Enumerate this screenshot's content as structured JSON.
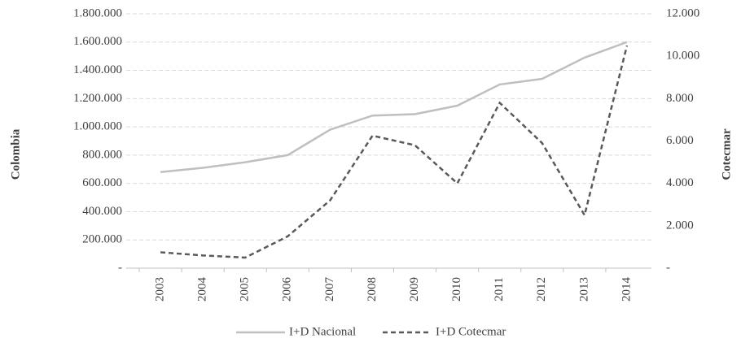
{
  "chart_data": {
    "type": "line",
    "categories": [
      "2003",
      "2004",
      "2005",
      "2006",
      "2007",
      "2008",
      "2009",
      "2010",
      "2011",
      "2012",
      "2013",
      "2014"
    ],
    "y_label": "Colombia",
    "y2_label": "Cotecmar",
    "series": [
      {
        "name": "I+D Nacional",
        "color": "#bfbfbf",
        "dash": false,
        "values": [
          680000,
          710000,
          750000,
          800000,
          980000,
          1080000,
          1090000,
          1150000,
          1300000,
          1340000,
          1490000,
          1600000
        ]
      },
      {
        "name": "I+D Cotecmar",
        "color": "#595959",
        "dash": true,
        "axis": "y2",
        "values": [
          750,
          600,
          500,
          1500,
          3200,
          6250,
          5800,
          4000,
          7800,
          5900,
          2500,
          10500
        ]
      }
    ],
    "ylim": [
      0,
      1800000
    ],
    "yticks": [
      {
        "value": 0,
        "label": "-"
      },
      {
        "value": 200000,
        "label": "200.000"
      },
      {
        "value": 400000,
        "label": "400.000"
      },
      {
        "value": 600000,
        "label": "600.000"
      },
      {
        "value": 800000,
        "label": "800.000"
      },
      {
        "value": 1000000,
        "label": "1.000.000"
      },
      {
        "value": 1200000,
        "label": "1.200.000"
      },
      {
        "value": 1400000,
        "label": "1.400.000"
      },
      {
        "value": 1600000,
        "label": "1.600.000"
      },
      {
        "value": 1800000,
        "label": "1.800.000"
      }
    ],
    "y2lim": [
      0,
      12000
    ],
    "y2ticks": [
      {
        "value": 0,
        "label": "-"
      },
      {
        "value": 2000,
        "label": "2.000"
      },
      {
        "value": 4000,
        "label": "4.000"
      },
      {
        "value": 6000,
        "label": "6.000"
      },
      {
        "value": 8000,
        "label": "8.000"
      },
      {
        "value": 10000,
        "label": "10.000"
      },
      {
        "value": 12000,
        "label": "12.000"
      }
    ],
    "grid": true,
    "legend": "bottom"
  }
}
